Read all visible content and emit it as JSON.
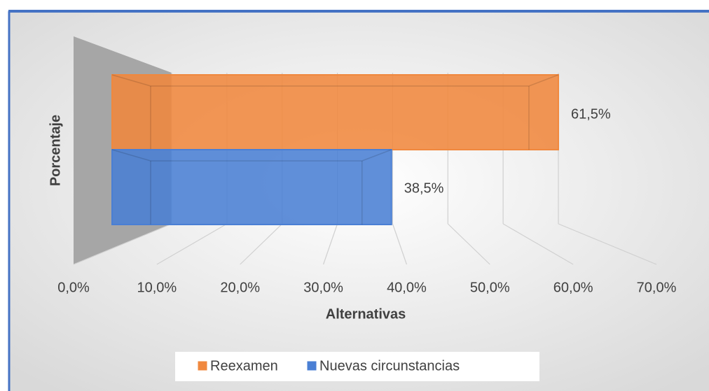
{
  "chart_data": {
    "type": "bar3d_horizontal",
    "categories": [
      null
    ],
    "series": [
      {
        "name": "Reexamen",
        "color": "#f0883e",
        "values": [
          61.5
        ],
        "value_labels": [
          "61,5%"
        ]
      },
      {
        "name": "Nuevas circunstancias",
        "color": "#4a7fd4",
        "values": [
          38.5
        ],
        "value_labels": [
          "38,5%"
        ]
      }
    ],
    "xlabel": "Alternativas",
    "ylabel": "Porcentaje",
    "xlim": [
      0,
      70
    ],
    "xticks": [
      {
        "value": 0,
        "label": "0,0%"
      },
      {
        "value": 10,
        "label": "10,0%"
      },
      {
        "value": 20,
        "label": "20,0%"
      },
      {
        "value": 30,
        "label": "30,0%"
      },
      {
        "value": 40,
        "label": "40,0%"
      },
      {
        "value": 50,
        "label": "50,0%"
      },
      {
        "value": 60,
        "label": "60,0%"
      },
      {
        "value": 70,
        "label": "70,0%"
      }
    ],
    "grid": true,
    "legend": "bottom"
  }
}
